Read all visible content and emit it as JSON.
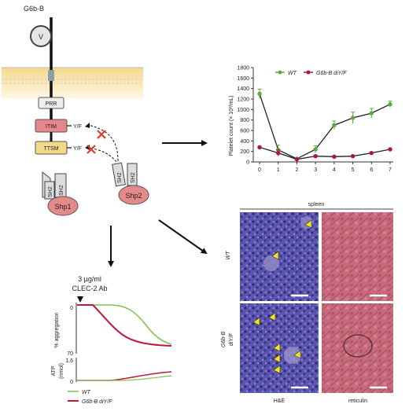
{
  "diagram": {
    "title": "G6b-B",
    "domain_v": "V",
    "motifs": {
      "prr": "PRR",
      "itim": "ITIM",
      "ttsm": "TTSM",
      "yf1": "Y/F",
      "yf2": "Y/F"
    },
    "shp1": {
      "label": "Shp1",
      "sh2a": "SH2",
      "sh2b": "SH2"
    },
    "shp2": {
      "label": "Shp2",
      "sh2a": "SH2",
      "sh2b": "SH2"
    }
  },
  "aggregation": {
    "stimulus_line1": "3 µg/ml",
    "stimulus_line2": "CLEC-2 Ab",
    "ylabel_top": "% aggregation",
    "ylabel_bottom_line1": "ATP",
    "ylabel_bottom_line2": "(nmol)",
    "ticks_top": [
      "0",
      "70"
    ],
    "ticks_bottom": [
      "1.6",
      "0"
    ],
    "legend": [
      {
        "name": "WT",
        "color": "#7cc24b"
      },
      {
        "name": "G6b-B diY/F",
        "color": "#c0173a"
      }
    ]
  },
  "chart_data": {
    "type": "line",
    "ylabel": "Platelet count (× 10³/mL)",
    "x": [
      0,
      1,
      2,
      3,
      4,
      5,
      6,
      7
    ],
    "ylim": [
      0,
      1800
    ],
    "yticks": [
      0,
      200,
      400,
      600,
      800,
      1000,
      1200,
      1400,
      1600,
      1800
    ],
    "series": [
      {
        "name": "WT",
        "color": "#5aab3c",
        "values": [
          1300,
          230,
          60,
          240,
          700,
          840,
          930,
          1100
        ],
        "errors": [
          90,
          90,
          20,
          70,
          80,
          110,
          90,
          60
        ]
      },
      {
        "name": "G6b-B diY/F",
        "color": "#b0153a",
        "values": [
          280,
          170,
          50,
          110,
          100,
          110,
          170,
          240
        ],
        "errors": [
          10,
          60,
          10,
          20,
          10,
          10,
          10,
          10
        ]
      }
    ]
  },
  "histology": {
    "header": "spleen",
    "row1": "WT",
    "row2_line1": "G6b-B",
    "row2_line2": "diY/F",
    "col1": "H&E",
    "col2": "reticulin"
  },
  "colors": {
    "motif": "#e8868a",
    "ttsm": "#f5d98a",
    "shp": "#e58a88",
    "membrane": "#f7e2a4",
    "arrow_red": "#e03a2a"
  }
}
